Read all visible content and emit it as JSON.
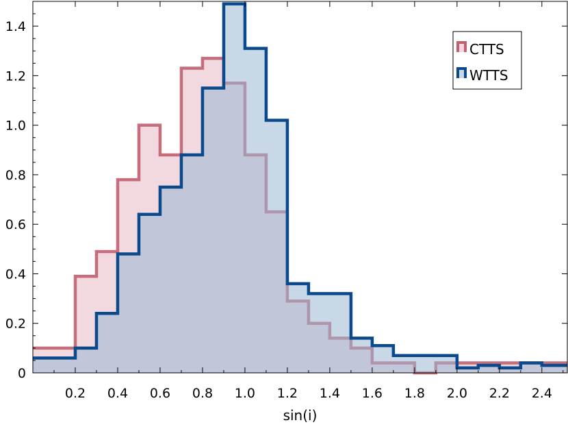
{
  "chart_data": {
    "type": "histogram",
    "title": "",
    "xlabel": "sin(i)",
    "ylabel": "",
    "xlim": [
      0.0,
      2.52
    ],
    "ylim": [
      0,
      1.5
    ],
    "x_ticks": [
      "0.2",
      "0.4",
      "0.6",
      "0.8",
      "1.0",
      "1.2",
      "1.4",
      "1.6",
      "1.8",
      "2.0",
      "2.2",
      "2.4"
    ],
    "y_ticks": [
      "0",
      "0.2",
      "0.4",
      "0.6",
      "0.8",
      "1.0",
      "1.2",
      "1.4"
    ],
    "grid": false,
    "legend_position": "top-right",
    "bin_edges": [
      0.0,
      0.1,
      0.2,
      0.3,
      0.4,
      0.5,
      0.6,
      0.7,
      0.8,
      0.9,
      1.0,
      1.1,
      1.2,
      1.3,
      1.4,
      1.5,
      1.6,
      1.7,
      1.8,
      1.9,
      2.0,
      2.1,
      2.2,
      2.3,
      2.4,
      2.52
    ],
    "series": [
      {
        "name": "CTTS",
        "color": "#c06070",
        "fill": "#e8b8c4",
        "values": [
          0.1,
          0.1,
          0.39,
          0.49,
          0.78,
          1.0,
          0.88,
          1.23,
          1.27,
          1.17,
          0.88,
          0.65,
          0.29,
          0.2,
          0.14,
          0.1,
          0.04,
          0.04,
          0.0,
          0.04,
          0.04,
          0.04,
          0.04,
          0.04,
          0.04
        ]
      },
      {
        "name": "WTTS",
        "color": "#0a4a8c",
        "fill": "#9ab8d4",
        "values": [
          0.06,
          0.06,
          0.1,
          0.24,
          0.48,
          0.64,
          0.75,
          0.88,
          1.15,
          1.49,
          1.31,
          1.02,
          0.36,
          0.32,
          0.32,
          0.14,
          0.11,
          0.07,
          0.07,
          0.07,
          0.02,
          0.03,
          0.02,
          0.04,
          0.03
        ]
      }
    ]
  }
}
